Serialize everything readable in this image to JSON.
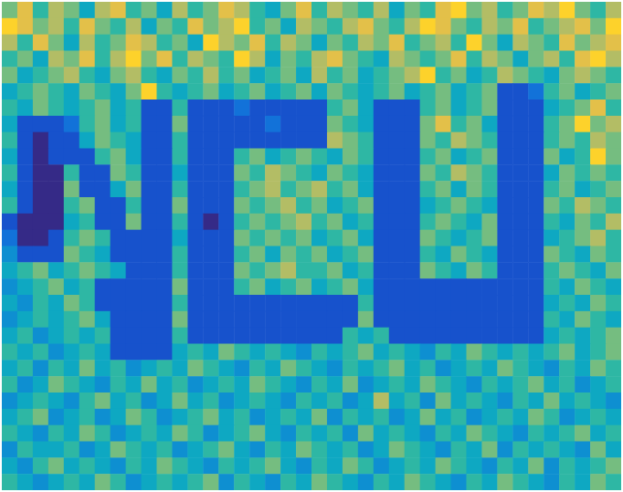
{
  "chart_data": {
    "type": "heatmap",
    "tick_labels": false,
    "color_range": [
      0,
      10
    ],
    "cells": [
      [
        6,
        8,
        5,
        7,
        6,
        4,
        7,
        8,
        5,
        6,
        4,
        7,
        5,
        6,
        8,
        7,
        5,
        4,
        6,
        8,
        5,
        7,
        6,
        5,
        7,
        4,
        6,
        5,
        8,
        9,
        6,
        7,
        5,
        6,
        8,
        7,
        9,
        6,
        5,
        7
      ],
      [
        9,
        8,
        6,
        7,
        5,
        8,
        6,
        5,
        7,
        4,
        6,
        5,
        8,
        6,
        7,
        9,
        5,
        6,
        4,
        7,
        6,
        5,
        7,
        8,
        6,
        5,
        7,
        9,
        8,
        6,
        5,
        7,
        6,
        8,
        5,
        6,
        7,
        8,
        6,
        9
      ],
      [
        7,
        5,
        8,
        6,
        4,
        7,
        5,
        6,
        8,
        7,
        5,
        6,
        4,
        9,
        7,
        6,
        8,
        5,
        7,
        6,
        4,
        6,
        5,
        7,
        6,
        8,
        5,
        6,
        7,
        5,
        9,
        6,
        4,
        7,
        6,
        5,
        8,
        6,
        7,
        8
      ],
      [
        5,
        6,
        4,
        7,
        6,
        8,
        5,
        7,
        9,
        6,
        8,
        5,
        7,
        6,
        5,
        9,
        7,
        4,
        6,
        5,
        7,
        8,
        6,
        5,
        4,
        7,
        6,
        5,
        6,
        8,
        5,
        7,
        6,
        4,
        6,
        7,
        5,
        8,
        9,
        7
      ],
      [
        6,
        4,
        5,
        6,
        7,
        5,
        4,
        6,
        7,
        5,
        4,
        6,
        5,
        7,
        5,
        6,
        4,
        5,
        6,
        4,
        7,
        5,
        6,
        4,
        5,
        6,
        7,
        9,
        5,
        6,
        4,
        5,
        7,
        6,
        5,
        4,
        6,
        7,
        6,
        5
      ],
      [
        4,
        5,
        6,
        5,
        4,
        6,
        5,
        4,
        6,
        9,
        5,
        4,
        5,
        6,
        4,
        5,
        6,
        4,
        5,
        6,
        4,
        6,
        5,
        4,
        5,
        6,
        4,
        5,
        6,
        4,
        5,
        6,
        1,
        1,
        2,
        5,
        6,
        4,
        5,
        6
      ],
      [
        5,
        4,
        6,
        5,
        4,
        5,
        6,
        4,
        5,
        1,
        1,
        5,
        1,
        1,
        1,
        2,
        1,
        1,
        1,
        1,
        1,
        5,
        6,
        4,
        1,
        1,
        1,
        5,
        6,
        4,
        5,
        6,
        1,
        1,
        1,
        4,
        5,
        6,
        8,
        5
      ],
      [
        4,
        1,
        1,
        1,
        2,
        5,
        6,
        4,
        5,
        1,
        1,
        6,
        1,
        1,
        1,
        1,
        1,
        2,
        1,
        1,
        1,
        6,
        5,
        4,
        1,
        1,
        1,
        6,
        8,
        5,
        6,
        4,
        1,
        1,
        1,
        5,
        6,
        9,
        6,
        7
      ],
      [
        5,
        1,
        0,
        1,
        1,
        4,
        6,
        5,
        4,
        1,
        1,
        5,
        1,
        1,
        1,
        1,
        1,
        1,
        1,
        1,
        1,
        7,
        6,
        5,
        1,
        1,
        1,
        6,
        5,
        7,
        6,
        5,
        1,
        1,
        1,
        5,
        6,
        5,
        7,
        6
      ],
      [
        4,
        1,
        0,
        1,
        1,
        1,
        5,
        6,
        4,
        1,
        1,
        5,
        1,
        1,
        1,
        5,
        6,
        4,
        5,
        6,
        5,
        4,
        6,
        5,
        1,
        1,
        1,
        5,
        6,
        4,
        5,
        6,
        1,
        1,
        1,
        6,
        4,
        5,
        9,
        6
      ],
      [
        5,
        1,
        0,
        0,
        5,
        1,
        1,
        6,
        5,
        1,
        1,
        4,
        1,
        1,
        1,
        6,
        5,
        7,
        6,
        5,
        4,
        6,
        5,
        4,
        1,
        1,
        1,
        6,
        5,
        7,
        6,
        5,
        1,
        1,
        1,
        4,
        6,
        5,
        6,
        5
      ],
      [
        4,
        1,
        0,
        0,
        6,
        1,
        1,
        4,
        6,
        1,
        1,
        5,
        1,
        1,
        1,
        5,
        6,
        7,
        5,
        6,
        7,
        5,
        6,
        4,
        1,
        1,
        1,
        5,
        6,
        4,
        6,
        5,
        1,
        1,
        1,
        5,
        6,
        4,
        5,
        6
      ],
      [
        5,
        1,
        0,
        0,
        5,
        6,
        1,
        1,
        5,
        1,
        1,
        6,
        1,
        1,
        1,
        6,
        5,
        6,
        7,
        5,
        6,
        4,
        5,
        6,
        1,
        1,
        1,
        4,
        5,
        6,
        5,
        4,
        1,
        1,
        1,
        6,
        5,
        7,
        6,
        5
      ],
      [
        1,
        0,
        0,
        0,
        4,
        5,
        1,
        1,
        6,
        1,
        1,
        5,
        1,
        0,
        1,
        5,
        6,
        5,
        6,
        7,
        5,
        6,
        4,
        5,
        1,
        1,
        1,
        5,
        6,
        5,
        4,
        6,
        1,
        1,
        1,
        5,
        4,
        6,
        5,
        7
      ],
      [
        2,
        0,
        0,
        1,
        5,
        6,
        5,
        1,
        1,
        1,
        1,
        4,
        1,
        1,
        1,
        6,
        5,
        6,
        5,
        6,
        4,
        5,
        6,
        4,
        1,
        1,
        1,
        6,
        5,
        4,
        5,
        6,
        1,
        1,
        1,
        4,
        5,
        6,
        7,
        5
      ],
      [
        3,
        1,
        1,
        1,
        6,
        5,
        4,
        1,
        1,
        1,
        1,
        5,
        1,
        1,
        1,
        5,
        6,
        4,
        6,
        5,
        6,
        4,
        5,
        6,
        1,
        1,
        1,
        5,
        4,
        6,
        5,
        4,
        1,
        1,
        1,
        6,
        5,
        4,
        6,
        5
      ],
      [
        4,
        5,
        6,
        4,
        5,
        6,
        5,
        4,
        1,
        1,
        1,
        5,
        1,
        1,
        1,
        6,
        5,
        6,
        7,
        5,
        5,
        6,
        4,
        5,
        1,
        1,
        1,
        6,
        5,
        4,
        6,
        5,
        1,
        1,
        1,
        5,
        6,
        5,
        4,
        6
      ],
      [
        3,
        4,
        5,
        6,
        4,
        5,
        1,
        1,
        1,
        1,
        1,
        6,
        1,
        1,
        1,
        5,
        6,
        4,
        5,
        6,
        4,
        5,
        6,
        4,
        1,
        1,
        1,
        1,
        1,
        1,
        1,
        1,
        1,
        1,
        1,
        5,
        4,
        6,
        5,
        4
      ],
      [
        4,
        3,
        5,
        4,
        6,
        5,
        1,
        1,
        1,
        1,
        1,
        5,
        1,
        1,
        1,
        1,
        1,
        1,
        1,
        1,
        1,
        1,
        1,
        5,
        1,
        1,
        1,
        1,
        1,
        1,
        1,
        1,
        1,
        1,
        1,
        4,
        5,
        4,
        6,
        5
      ],
      [
        3,
        4,
        5,
        4,
        5,
        6,
        4,
        1,
        1,
        1,
        1,
        6,
        1,
        1,
        1,
        1,
        1,
        1,
        1,
        1,
        1,
        1,
        1,
        6,
        1,
        1,
        1,
        1,
        1,
        1,
        1,
        1,
        1,
        1,
        1,
        5,
        4,
        6,
        5,
        4
      ],
      [
        4,
        5,
        3,
        4,
        5,
        4,
        5,
        1,
        1,
        1,
        1,
        5,
        1,
        1,
        1,
        1,
        1,
        1,
        1,
        1,
        1,
        1,
        5,
        4,
        5,
        1,
        1,
        1,
        1,
        1,
        1,
        1,
        1,
        1,
        1,
        4,
        5,
        4,
        5,
        6
      ],
      [
        5,
        4,
        5,
        3,
        4,
        5,
        4,
        1,
        1,
        1,
        1,
        4,
        5,
        4,
        6,
        5,
        4,
        5,
        4,
        3,
        5,
        4,
        5,
        6,
        4,
        5,
        4,
        3,
        5,
        4,
        6,
        5,
        4,
        5,
        4,
        5,
        6,
        4,
        5,
        6
      ],
      [
        4,
        5,
        3,
        5,
        4,
        6,
        4,
        5,
        3,
        4,
        5,
        4,
        6,
        5,
        4,
        3,
        5,
        4,
        6,
        5,
        4,
        3,
        5,
        4,
        5,
        6,
        4,
        5,
        3,
        4,
        5,
        4,
        6,
        5,
        4,
        3,
        5,
        4,
        6,
        5
      ],
      [
        5,
        3,
        4,
        6,
        5,
        4,
        3,
        5,
        4,
        6,
        4,
        5,
        3,
        4,
        5,
        4,
        6,
        5,
        4,
        3,
        5,
        4,
        6,
        3,
        4,
        5,
        4,
        6,
        5,
        4,
        3,
        5,
        4,
        5,
        6,
        4,
        5,
        3,
        4,
        5
      ],
      [
        3,
        4,
        5,
        4,
        3,
        5,
        6,
        4,
        5,
        3,
        4,
        6,
        4,
        5,
        3,
        4,
        5,
        4,
        3,
        5,
        4,
        5,
        3,
        4,
        7,
        4,
        5,
        3,
        6,
        4,
        5,
        4,
        3,
        5,
        4,
        6,
        4,
        5,
        4,
        3
      ],
      [
        4,
        5,
        6,
        3,
        4,
        5,
        3,
        4,
        6,
        5,
        3,
        4,
        5,
        6,
        4,
        5,
        3,
        4,
        5,
        4,
        6,
        3,
        5,
        4,
        5,
        3,
        4,
        6,
        4,
        5,
        3,
        4,
        5,
        4,
        6,
        5,
        3,
        4,
        5,
        4
      ],
      [
        5,
        4,
        3,
        5,
        4,
        6,
        5,
        3,
        4,
        5,
        4,
        6,
        5,
        3,
        4,
        5,
        6,
        4,
        3,
        5,
        4,
        5,
        3,
        6,
        4,
        5,
        4,
        3,
        5,
        4,
        6,
        5,
        4,
        3,
        5,
        4,
        5,
        6,
        4,
        5
      ],
      [
        3,
        5,
        4,
        4,
        5,
        3,
        4,
        6,
        5,
        4,
        5,
        3,
        4,
        5,
        6,
        4,
        3,
        5,
        4,
        6,
        5,
        4,
        5,
        3,
        4,
        6,
        5,
        4,
        3,
        5,
        4,
        6,
        3,
        5,
        4,
        5,
        4,
        3,
        6,
        4
      ],
      [
        4,
        3,
        5,
        6,
        4,
        5,
        4,
        3,
        5,
        4,
        6,
        5,
        4,
        3,
        5,
        4,
        5,
        6,
        4,
        3,
        5,
        4,
        6,
        5,
        3,
        4,
        5,
        4,
        6,
        5,
        4,
        3,
        5,
        4,
        6,
        3,
        5,
        4,
        5,
        6
      ],
      [
        5,
        4,
        3,
        4,
        5,
        4,
        6,
        5,
        3,
        4,
        5,
        4,
        5,
        6,
        3,
        5,
        4,
        3,
        5,
        4,
        6,
        5,
        4,
        3,
        5,
        4,
        6,
        5,
        4,
        3,
        5,
        4,
        6,
        5,
        4,
        3,
        5,
        4,
        6,
        5
      ]
    ]
  }
}
